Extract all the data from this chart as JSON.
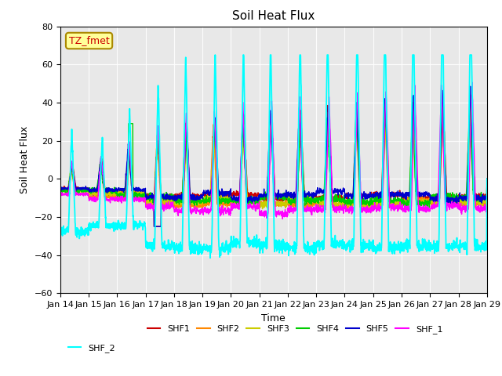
{
  "title": "Soil Heat Flux",
  "ylabel": "Soil Heat Flux",
  "xlabel": "Time",
  "ylim": [
    -60,
    80
  ],
  "yticks": [
    -60,
    -40,
    -20,
    0,
    20,
    40,
    60,
    80
  ],
  "background_color": "#ffffff",
  "plot_bg_color": "#e8e8e8",
  "series": [
    "SHF1",
    "SHF2",
    "SHF3",
    "SHF4",
    "SHF5",
    "SHF_1",
    "SHF_2"
  ],
  "colors": {
    "SHF1": "#cc0000",
    "SHF2": "#ff8800",
    "SHF3": "#cccc00",
    "SHF4": "#00cc00",
    "SHF5": "#0000cc",
    "SHF_1": "#ff00ff",
    "SHF_2": "#00ffff"
  },
  "annotation_text": "TZ_fmet",
  "annotation_color": "#cc0000",
  "annotation_bg": "#ffff99",
  "n_days": 15,
  "start_day": 14,
  "points_per_day": 144
}
